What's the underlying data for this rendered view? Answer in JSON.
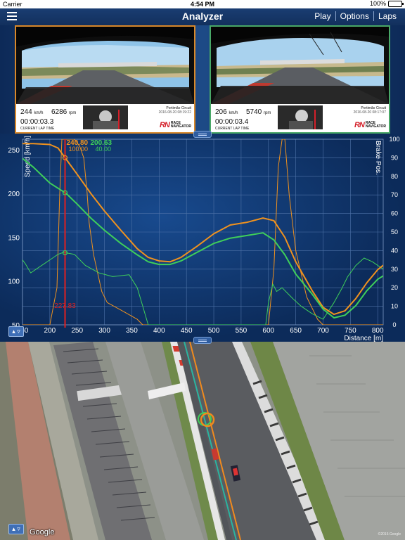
{
  "status_bar": {
    "carrier": "Carrier",
    "time": "4:54 PM",
    "battery": "100%",
    "battery_level": 1.0
  },
  "nav": {
    "title": "Analyzer",
    "actions": [
      "Play",
      "Options",
      "Laps"
    ]
  },
  "videos": [
    {
      "speed": "244",
      "speed_unit": "km/h",
      "rpm": "6286",
      "rpm_unit": "rpm",
      "lap_time": "00:00:03.3",
      "lap_label": "CURRENT LAP TIME",
      "circuit": "Portimão Circuit",
      "circuit_sub": "2016-08-20 08:19:22",
      "logo_mark": "RN",
      "logo_text_1": "RACE",
      "logo_text_2": "NAVIGATOR",
      "border": "#d8882a"
    },
    {
      "speed": "206",
      "speed_unit": "km/h",
      "rpm": "5740",
      "rpm_unit": "rpm",
      "lap_time": "00:00:03.4",
      "lap_label": "CURRENT LAP TIME",
      "circuit": "Portimão Circuit",
      "circuit_sub": "2016-08-20 08:17:07",
      "logo_mark": "RN",
      "logo_text_1": "RACE",
      "logo_text_2": "NAVIGATOR",
      "border": "#49a867"
    }
  ],
  "chart_data": {
    "type": "line",
    "xlabel": "Distance [m]",
    "ylabel": "Speed [km/h]",
    "y2label": "Brake Pos.",
    "xlim": [
      150,
      810
    ],
    "ylim": [
      50,
      262
    ],
    "y2lim": [
      0,
      100
    ],
    "x_ticks": [
      150,
      200,
      250,
      300,
      350,
      400,
      450,
      500,
      550,
      600,
      650,
      700,
      750,
      800
    ],
    "x_tick_labels": [
      "150",
      "200",
      "250",
      "300",
      "350",
      "400",
      "450",
      "500",
      "550",
      "600",
      "650",
      "700",
      "750",
      "800"
    ],
    "y_ticks": [
      50,
      100,
      150,
      200,
      250
    ],
    "y_tick_labels": [
      "50",
      "100",
      "150",
      "200",
      "250"
    ],
    "y2_ticks": [
      0,
      10,
      20,
      30,
      40,
      50,
      60,
      70,
      80,
      90,
      100
    ],
    "y2_tick_labels": [
      "0",
      "10",
      "20",
      "30",
      "40",
      "50",
      "60",
      "70",
      "80",
      "90",
      "100"
    ],
    "grid": true,
    "cursor": {
      "x": 227.83,
      "label": "227.83"
    },
    "readout": [
      {
        "speed": "240.80",
        "brake": "100.00",
        "color": "#f0921e"
      },
      {
        "speed": "200.63",
        "brake": "40.00",
        "color": "#3fcf5a"
      }
    ],
    "series": [
      {
        "color": "#f0921e",
        "axis": "speed",
        "width": 2,
        "x": [
          150,
          170,
          200,
          215,
          230,
          250,
          275,
          300,
          330,
          360,
          380,
          400,
          420,
          440,
          470,
          500,
          530,
          560,
          590,
          610,
          630,
          650,
          680,
          700,
          720,
          740,
          760,
          780,
          800,
          810
        ],
        "y": [
          257,
          257,
          256,
          252,
          239,
          222,
          200,
          180,
          158,
          137,
          127,
          123,
          122,
          127,
          140,
          154,
          164,
          167,
          172,
          169,
          150,
          122,
          89,
          70,
          62,
          66,
          80,
          98,
          113,
          118
        ]
      },
      {
        "color": "#3fcf5a",
        "axis": "speed",
        "width": 2,
        "x": [
          150,
          170,
          200,
          220,
          230,
          250,
          275,
          300,
          330,
          360,
          380,
          400,
          420,
          440,
          470,
          500,
          530,
          560,
          590,
          610,
          630,
          650,
          680,
          700,
          720,
          740,
          760,
          780,
          800,
          810
        ],
        "y": [
          240,
          230,
          212,
          204,
          200,
          188,
          172,
          158,
          143,
          130,
          122,
          119,
          119,
          123,
          133,
          143,
          149,
          152,
          155,
          147,
          130,
          108,
          85,
          68,
          58,
          61,
          72,
          89,
          102,
          106
        ]
      },
      {
        "color": "#f0921e",
        "axis": "brake",
        "width": 1,
        "x": [
          150,
          160,
          200,
          213,
          218,
          222,
          226,
          235,
          245,
          255,
          262,
          268,
          272,
          280,
          295,
          305,
          330,
          360,
          370,
          380,
          600,
          610,
          618,
          625,
          630,
          638,
          650,
          670,
          690,
          700,
          810
        ],
        "y": [
          0,
          0,
          0,
          20,
          70,
          100,
          100,
          100,
          100,
          96,
          90,
          72,
          55,
          38,
          18,
          12,
          8,
          3,
          0,
          0,
          0,
          30,
          85,
          100,
          100,
          70,
          40,
          15,
          3,
          0,
          0
        ]
      },
      {
        "color": "#3fcf5a",
        "axis": "brake",
        "width": 1,
        "x": [
          150,
          155,
          165,
          175,
          190,
          205,
          215,
          225,
          245,
          265,
          290,
          315,
          345,
          360,
          372,
          380,
          595,
          600,
          608,
          615,
          625,
          635,
          645,
          660,
          680,
          700,
          720,
          735,
          745,
          760,
          775,
          790,
          810
        ],
        "y": [
          35,
          33,
          28,
          30,
          33,
          36,
          38,
          39,
          38,
          32,
          28,
          26,
          27,
          20,
          8,
          0,
          0,
          12,
          22,
          18,
          20,
          17,
          14,
          10,
          6,
          3,
          12,
          20,
          26,
          32,
          36,
          34,
          30
        ]
      }
    ]
  },
  "map": {
    "google_label": "Google",
    "copyright": "©2016 Google"
  }
}
